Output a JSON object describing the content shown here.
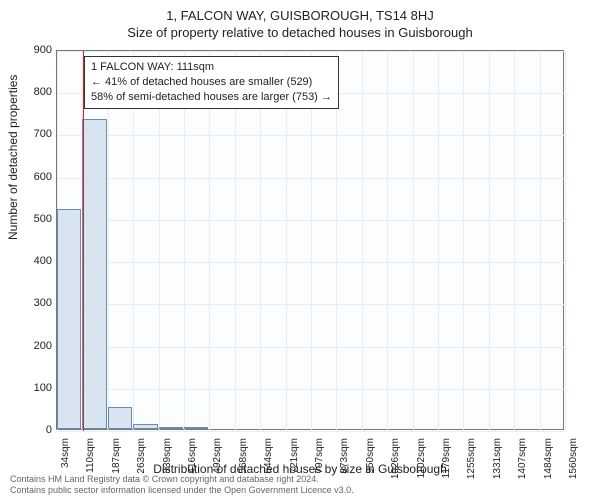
{
  "address": "1, FALCON WAY, GUISBOROUGH, TS14 8HJ",
  "title": "Size of property relative to detached houses in Guisborough",
  "ylabel": "Number of detached properties",
  "xlabel": "Distribution of detached houses by size in Guisborough",
  "chart": {
    "type": "histogram",
    "background_color": "#fbfdfe",
    "grid_color": "#e6edf3",
    "border_color": "#777777",
    "bar_fill": "#d8e4f0",
    "bar_stroke": "#6a8bb0",
    "marker_color": "#d02626",
    "ylim": [
      0,
      900
    ],
    "yticks": [
      0,
      100,
      200,
      300,
      400,
      500,
      600,
      700,
      800,
      900
    ],
    "xticks": [
      "34sqm",
      "110sqm",
      "187sqm",
      "263sqm",
      "339sqm",
      "416sqm",
      "492sqm",
      "568sqm",
      "644sqm",
      "721sqm",
      "797sqm",
      "873sqm",
      "950sqm",
      "1026sqm",
      "1102sqm",
      "1179sqm",
      "1255sqm",
      "1331sqm",
      "1407sqm",
      "1484sqm",
      "1560sqm"
    ],
    "x_min": 34,
    "x_max": 1560,
    "bars": [
      {
        "x": 34,
        "value": 520
      },
      {
        "x": 110,
        "value": 735
      },
      {
        "x": 187,
        "value": 52
      },
      {
        "x": 263,
        "value": 12
      },
      {
        "x": 339,
        "value": 5
      },
      {
        "x": 416,
        "value": 3
      }
    ],
    "bar_width_sqm": 76,
    "marker_x": 111
  },
  "annotation": {
    "line1": "1 FALCON WAY: 111sqm",
    "line2": "← 41% of detached houses are smaller (529)",
    "line3": "58% of semi-detached houses are larger (753) →"
  },
  "footer": {
    "line1": "Contains HM Land Registry data © Crown copyright and database right 2024.",
    "line2": "Contains public sector information licensed under the Open Government Licence v3.0."
  }
}
